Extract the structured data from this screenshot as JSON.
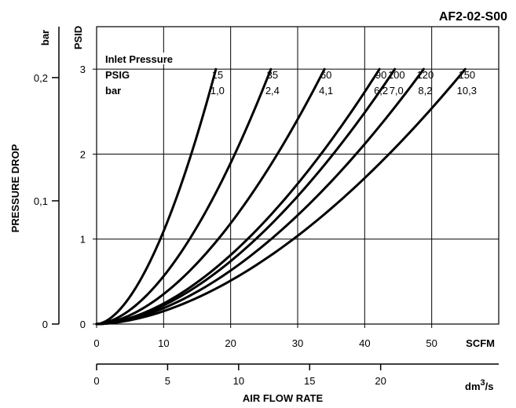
{
  "chart_data": {
    "type": "line",
    "title": "AF2-02-S00",
    "xlabel": "AIR FLOW RATE",
    "ylabel": "PRESSURE DROP",
    "x_unit_primary": "SCFM",
    "x_unit_secondary": "dm",
    "x_unit_secondary_sup": "3",
    "x_unit_secondary_tail": "/s",
    "y_unit_primary": "PSID",
    "y_unit_secondary": "bar",
    "xlim": [
      0,
      60
    ],
    "ylim": [
      0,
      3.5
    ],
    "x_ticks": [
      "0",
      "10",
      "20",
      "30",
      "40",
      "50"
    ],
    "x2_ticks": [
      "0",
      "5",
      "10",
      "15",
      "20"
    ],
    "y_ticks": [
      "0",
      "1",
      "2",
      "3"
    ],
    "y2_ticks": [
      "0",
      "0,1",
      "0,2"
    ],
    "grid": true,
    "legend": {
      "title": "Inlet Pressure",
      "row1_label": "PSIG",
      "row2_label": "bar"
    },
    "series": [
      {
        "name": "15",
        "bar": "1,0",
        "x_end": 17.8,
        "exponent": 1.75
      },
      {
        "name": "35",
        "bar": "2,4",
        "x_end": 26.0,
        "exponent": 1.75
      },
      {
        "name": "60",
        "bar": "4,1",
        "x_end": 34.0,
        "exponent": 1.75
      },
      {
        "name": "90",
        "bar": "6,2",
        "x_end": 42.2,
        "exponent": 1.75
      },
      {
        "name": "100",
        "bar": "7,0",
        "x_end": 44.5,
        "exponent": 1.75
      },
      {
        "name": "120",
        "bar": "8,2",
        "x_end": 48.8,
        "exponent": 1.75
      },
      {
        "name": "150",
        "bar": "10,3",
        "x_end": 55.0,
        "exponent": 1.75
      }
    ]
  }
}
